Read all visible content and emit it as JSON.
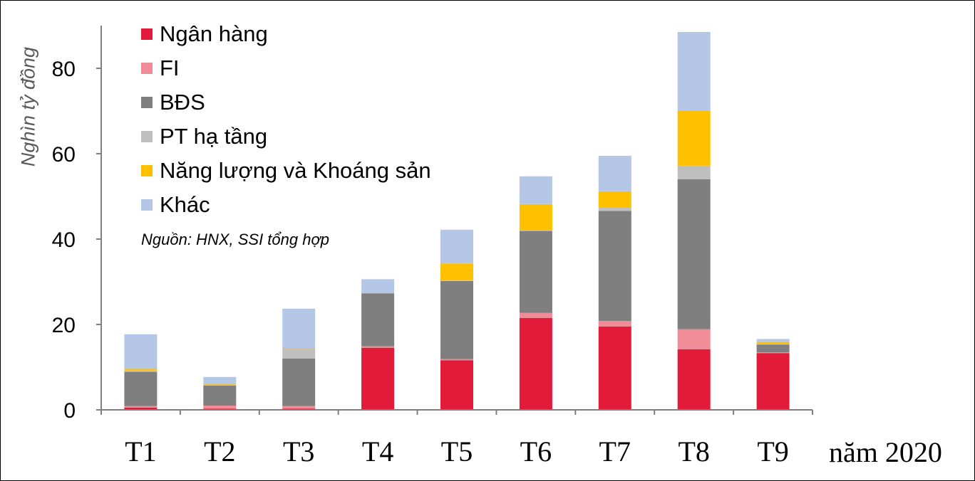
{
  "chart_data": {
    "type": "bar",
    "stacked": true,
    "categories": [
      "T1",
      "T2",
      "T3",
      "T4",
      "T5",
      "T6",
      "T7",
      "T8",
      "T9"
    ],
    "x_unit_label": "năm 2020",
    "ylabel": "Nghìn tỷ đồng",
    "ylim": [
      0,
      90
    ],
    "yticks": [
      0,
      20,
      40,
      60,
      80
    ],
    "source_note": "Nguồn: HNX, SSI tổng hợp",
    "legend_position": "top-left",
    "grid": false,
    "series": [
      {
        "name": "Ngân hàng",
        "color": "#e31b3a",
        "values": [
          0.5,
          0.3,
          0.3,
          14.5,
          11.6,
          21.5,
          19.5,
          14.2,
          13.3
        ]
      },
      {
        "name": "FI",
        "color": "#f08c98",
        "values": [
          0.4,
          0.7,
          0.6,
          0.4,
          0.3,
          1.2,
          1.3,
          4.7,
          0.2
        ]
      },
      {
        "name": "BĐS",
        "color": "#7f7f7f",
        "values": [
          8.0,
          4.7,
          11.1,
          12.4,
          18.3,
          19.2,
          25.8,
          35.1,
          1.8
        ]
      },
      {
        "name": "PT hạ tầng",
        "color": "#bfbfbf",
        "values": [
          0.3,
          0.2,
          2.3,
          0.1,
          0.1,
          0.2,
          0.9,
          3.2,
          0.2
        ]
      },
      {
        "name": "Năng lượng và Khoáng sản",
        "color": "#ffc000",
        "values": [
          0.4,
          0.3,
          0.2,
          0.0,
          4.0,
          6.1,
          3.7,
          12.8,
          0.4
        ]
      },
      {
        "name": "Khác",
        "color": "#b4c7e7",
        "values": [
          8.1,
          1.5,
          9.2,
          3.2,
          7.9,
          6.5,
          8.3,
          18.5,
          0.7
        ]
      }
    ]
  }
}
